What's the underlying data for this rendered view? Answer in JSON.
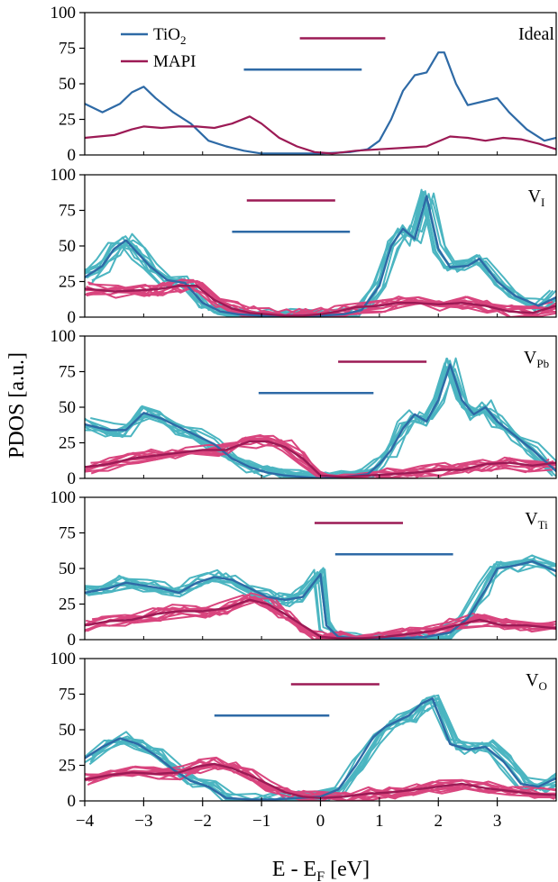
{
  "figure": {
    "ylabel": "PDOS [a.u.]",
    "xlabel_main": "E - E",
    "xlabel_sub": "F",
    "xlabel_unit": " [eV]",
    "xlim": [
      -4,
      4
    ],
    "x_ticks": [
      -4,
      -3,
      -2,
      -1,
      0,
      1,
      2,
      3
    ],
    "x_tick_labels": [
      "−4",
      "−3",
      "−2",
      "−1",
      "0",
      "1",
      "2",
      "3"
    ],
    "ylim": [
      0,
      100
    ],
    "y_ticks": [
      0,
      25,
      50,
      75,
      100
    ],
    "y_tick_labels": [
      "0",
      "25",
      "50",
      "75",
      "100"
    ],
    "legend": {
      "tio2_main": "TiO",
      "tio2_sub": "2",
      "mapi": "MAPI"
    },
    "colors": {
      "tio2": "#2e6aa6",
      "tio2_ensemble": "#4bb5c1",
      "mapi": "#9c1a55",
      "mapi_ensemble": "#d9457e"
    }
  },
  "chart_data": [
    {
      "type": "line",
      "panel_label_main": "Ideal",
      "panel_label_sub": "",
      "band_edges": {
        "MAPI": [
          -0.35,
          1.1
        ],
        "TiO2": [
          -1.3,
          0.7
        ]
      },
      "series": [
        {
          "name": "TiO2",
          "x": [
            -4,
            -3.7,
            -3.4,
            -3.2,
            -3.0,
            -2.8,
            -2.5,
            -2.2,
            -1.9,
            -1.6,
            -1.3,
            -1.0,
            -0.5,
            0,
            0.5,
            0.8,
            1.0,
            1.2,
            1.4,
            1.6,
            1.8,
            2.0,
            2.1,
            2.3,
            2.5,
            2.8,
            3.0,
            3.2,
            3.5,
            3.8,
            4.0
          ],
          "y": [
            36,
            30,
            36,
            44,
            48,
            40,
            30,
            22,
            10,
            6,
            3,
            1,
            1,
            1,
            2,
            4,
            10,
            25,
            45,
            56,
            58,
            72,
            72,
            50,
            35,
            38,
            40,
            30,
            18,
            10,
            12
          ]
        },
        {
          "name": "MAPI",
          "x": [
            -4,
            -3.5,
            -3.2,
            -3.0,
            -2.7,
            -2.4,
            -2.1,
            -1.8,
            -1.5,
            -1.2,
            -1.0,
            -0.7,
            -0.4,
            -0.1,
            0.2,
            0.6,
            1.0,
            1.4,
            1.8,
            2.2,
            2.5,
            2.8,
            3.1,
            3.4,
            3.7,
            4.0
          ],
          "y": [
            12,
            14,
            18,
            20,
            19,
            20,
            20,
            19,
            22,
            27,
            22,
            12,
            6,
            2,
            1,
            3,
            4,
            5,
            6,
            13,
            12,
            10,
            12,
            11,
            8,
            4
          ]
        }
      ]
    },
    {
      "type": "line",
      "panel_label_main": "V",
      "panel_label_sub": "I",
      "band_edges": {
        "MAPI": [
          -1.25,
          0.25
        ],
        "TiO2": [
          -1.5,
          0.5
        ]
      },
      "series": [
        {
          "name": "TiO2",
          "x": [
            -4,
            -3.7,
            -3.5,
            -3.3,
            -3.1,
            -2.9,
            -2.6,
            -2.3,
            -2.0,
            -1.7,
            -1.4,
            -1.0,
            -0.5,
            0,
            0.4,
            0.7,
            1.0,
            1.2,
            1.4,
            1.6,
            1.8,
            2.0,
            2.2,
            2.5,
            2.7,
            3.0,
            3.3,
            3.7,
            4.0
          ],
          "y": [
            28,
            36,
            48,
            54,
            45,
            36,
            26,
            24,
            10,
            4,
            2,
            1,
            1,
            1,
            2,
            5,
            22,
            50,
            62,
            55,
            85,
            48,
            35,
            36,
            41,
            25,
            15,
            8,
            14
          ]
        },
        {
          "name": "MAPI",
          "x": [
            -4,
            -3.5,
            -3.0,
            -2.7,
            -2.4,
            -2.1,
            -1.8,
            -1.5,
            -1.2,
            -0.9,
            -0.6,
            -0.3,
            0,
            0.3,
            0.6,
            1.0,
            1.3,
            1.6,
            2.0,
            2.4,
            2.8,
            3.2,
            3.6,
            4.0
          ],
          "y": [
            20,
            18,
            19,
            20,
            22,
            22,
            12,
            6,
            3,
            2,
            1,
            1,
            2,
            4,
            7,
            8,
            10,
            10,
            9,
            10,
            8,
            4,
            3,
            8
          ]
        }
      ]
    },
    {
      "type": "line",
      "panel_label_main": "V",
      "panel_label_sub": "Pb",
      "band_edges": {
        "MAPI": [
          0.3,
          1.8
        ],
        "TiO2": [
          -1.05,
          0.9
        ]
      },
      "series": [
        {
          "name": "TiO2",
          "x": [
            -4,
            -3.6,
            -3.3,
            -3.0,
            -2.7,
            -2.4,
            -2.1,
            -1.8,
            -1.5,
            -1.2,
            -0.9,
            -0.6,
            -0.3,
            0,
            0.4,
            0.8,
            1.0,
            1.2,
            1.4,
            1.6,
            1.8,
            2.0,
            2.2,
            2.4,
            2.6,
            2.8,
            3.0,
            3.3,
            3.6,
            4.0
          ],
          "y": [
            38,
            34,
            34,
            46,
            42,
            36,
            30,
            24,
            14,
            8,
            4,
            2,
            1,
            0,
            1,
            3,
            10,
            20,
            35,
            45,
            40,
            55,
            80,
            55,
            45,
            50,
            40,
            30,
            20,
            5
          ]
        },
        {
          "name": "MAPI",
          "x": [
            -4,
            -3.6,
            -3.2,
            -2.8,
            -2.4,
            -2.0,
            -1.6,
            -1.2,
            -0.9,
            -0.6,
            -0.3,
            0,
            0.4,
            0.8,
            1.2,
            1.6,
            2.0,
            2.4,
            2.8,
            3.2,
            3.6,
            4.0
          ],
          "y": [
            8,
            10,
            14,
            16,
            18,
            20,
            20,
            26,
            26,
            22,
            14,
            2,
            1,
            2,
            3,
            4,
            6,
            6,
            10,
            11,
            9,
            11
          ]
        }
      ]
    },
    {
      "type": "line",
      "panel_label_main": "V",
      "panel_label_sub": "Ti",
      "band_edges": {
        "MAPI": [
          -0.1,
          1.4
        ],
        "TiO2": [
          0.25,
          2.25
        ]
      },
      "series": [
        {
          "name": "TiO2",
          "x": [
            -4,
            -3.6,
            -3.3,
            -3.0,
            -2.7,
            -2.4,
            -2.1,
            -1.8,
            -1.5,
            -1.2,
            -0.9,
            -0.6,
            -0.3,
            0,
            0.1,
            0.3,
            0.6,
            1.0,
            1.4,
            1.8,
            2.2,
            2.5,
            2.8,
            3.0,
            3.3,
            3.6,
            4.0
          ],
          "y": [
            33,
            36,
            40,
            38,
            36,
            33,
            40,
            44,
            42,
            36,
            30,
            28,
            30,
            46,
            10,
            2,
            1,
            1,
            1,
            2,
            5,
            15,
            35,
            50,
            52,
            55,
            48
          ]
        },
        {
          "name": "MAPI",
          "x": [
            -4,
            -3.6,
            -3.2,
            -2.8,
            -2.4,
            -2.0,
            -1.6,
            -1.2,
            -0.9,
            -0.6,
            -0.3,
            0,
            0.3,
            0.7,
            1.1,
            1.5,
            1.9,
            2.3,
            2.7,
            3.1,
            3.5,
            4.0
          ],
          "y": [
            10,
            13,
            14,
            18,
            20,
            20,
            22,
            28,
            25,
            18,
            10,
            2,
            1,
            1,
            2,
            4,
            6,
            10,
            14,
            10,
            10,
            8
          ]
        }
      ]
    },
    {
      "type": "line",
      "panel_label_main": "V",
      "panel_label_sub": "O",
      "band_edges": {
        "MAPI": [
          -0.5,
          1.0
        ],
        "TiO2": [
          -1.8,
          0.15
        ]
      },
      "series": [
        {
          "name": "TiO2",
          "x": [
            -4,
            -3.7,
            -3.4,
            -3.1,
            -2.8,
            -2.5,
            -2.2,
            -1.9,
            -1.6,
            -1.2,
            -0.8,
            -0.4,
            0,
            0.3,
            0.6,
            0.9,
            1.1,
            1.3,
            1.5,
            1.7,
            1.9,
            2.2,
            2.5,
            2.8,
            3.1,
            3.4,
            3.7,
            4.0
          ],
          "y": [
            30,
            38,
            44,
            40,
            32,
            22,
            14,
            10,
            2,
            1,
            1,
            2,
            3,
            8,
            25,
            45,
            52,
            56,
            60,
            68,
            72,
            40,
            36,
            38,
            28,
            12,
            10,
            16
          ]
        },
        {
          "name": "MAPI",
          "x": [
            -4,
            -3.6,
            -3.2,
            -2.8,
            -2.4,
            -2.1,
            -1.8,
            -1.5,
            -1.2,
            -0.9,
            -0.6,
            -0.3,
            0,
            0.4,
            0.8,
            1.2,
            1.6,
            2.0,
            2.4,
            2.8,
            3.2,
            3.6,
            4.0
          ],
          "y": [
            15,
            18,
            20,
            19,
            20,
            24,
            26,
            23,
            18,
            12,
            6,
            3,
            2,
            3,
            5,
            6,
            8,
            10,
            12,
            9,
            7,
            5,
            4
          ]
        }
      ]
    }
  ]
}
